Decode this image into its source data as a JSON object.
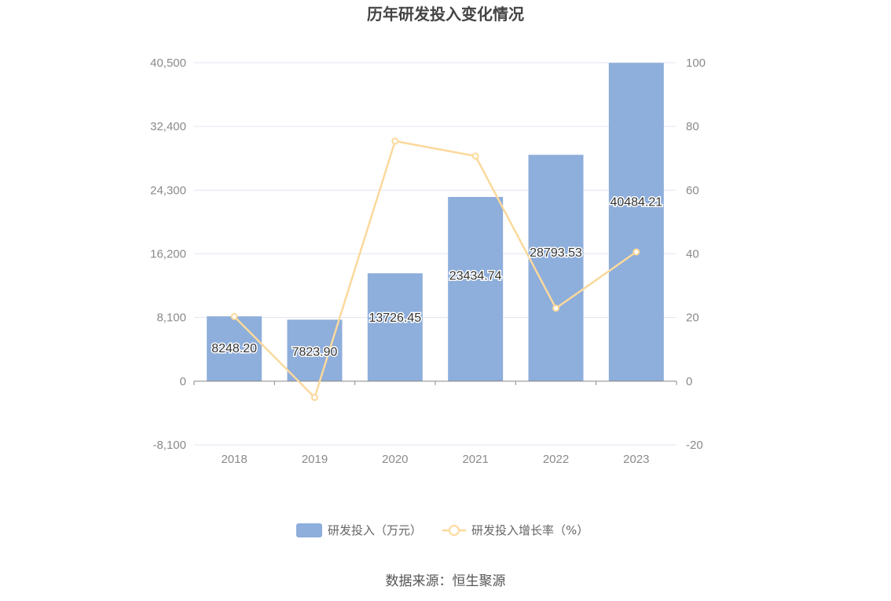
{
  "title": "历年研发投入变化情况",
  "source": "数据来源：恒生聚源",
  "colors": {
    "bar": "#8eaedb",
    "line": "#fbd99c",
    "grid": "#e3e6f2",
    "axis": "#888888"
  },
  "chart_data": {
    "type": "bar",
    "categories": [
      "2018",
      "2019",
      "2020",
      "2021",
      "2022",
      "2023"
    ],
    "series": [
      {
        "name": "研发投入（万元）",
        "type": "bar",
        "axis": "left",
        "values": [
          8248.2,
          7823.9,
          13726.45,
          23434.74,
          28793.53,
          40484.21
        ],
        "labels": [
          "8248.20",
          "7823.90",
          "13726.45",
          "23434.74",
          "28793.53",
          "40484.21"
        ]
      },
      {
        "name": "研发投入增长率（%）",
        "type": "line",
        "axis": "right",
        "values": [
          20.3,
          -5.1,
          75.4,
          70.7,
          22.9,
          40.6
        ]
      }
    ],
    "y_left": {
      "min": -8100,
      "max": 40500,
      "ticks": [
        -8100,
        0,
        8100,
        16200,
        24300,
        32400,
        40500
      ],
      "tick_labels": [
        "-8,100",
        "0",
        "8,100",
        "16,200",
        "24,300",
        "32,400",
        "40,500"
      ]
    },
    "y_right": {
      "min": -20,
      "max": 100,
      "ticks": [
        -20,
        0,
        20,
        40,
        60,
        80,
        100
      ],
      "tick_labels": [
        "-20",
        "0",
        "20",
        "40",
        "60",
        "80",
        "100"
      ]
    },
    "grid": true,
    "legend_position": "bottom-center"
  }
}
